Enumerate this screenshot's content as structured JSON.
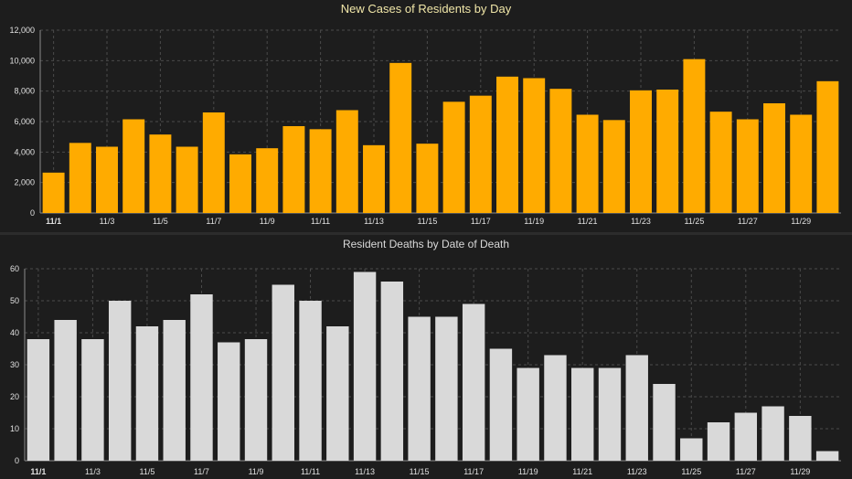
{
  "charts": [
    {
      "id": "cases",
      "chart_data": {
        "type": "bar",
        "title": "New Cases of Residents by Day",
        "xlabel": "",
        "ylabel": "",
        "ylim": [
          0,
          12000
        ],
        "yticks": [
          0,
          2000,
          4000,
          6000,
          8000,
          10000,
          12000
        ],
        "ytick_labels": [
          "0",
          "2,000",
          "4,000",
          "6,000",
          "8,000",
          "10,000",
          "12,000"
        ],
        "categories": [
          "11/1",
          "11/2",
          "11/3",
          "11/4",
          "11/5",
          "11/6",
          "11/7",
          "11/8",
          "11/9",
          "11/10",
          "11/11",
          "11/12",
          "11/13",
          "11/14",
          "11/15",
          "11/16",
          "11/17",
          "11/18",
          "11/19",
          "11/20",
          "11/21",
          "11/22",
          "11/23",
          "11/24",
          "11/25",
          "11/26",
          "11/27",
          "11/28",
          "11/29",
          "11/30"
        ],
        "xtick_labels": [
          "11/1",
          "11/3",
          "11/5",
          "11/7",
          "11/9",
          "11/11",
          "11/13",
          "11/15",
          "11/17",
          "11/19",
          "11/21",
          "11/23",
          "11/25",
          "11/27",
          "11/29"
        ],
        "values": [
          2650,
          4600,
          4350,
          6150,
          5150,
          4350,
          6600,
          3850,
          4250,
          5700,
          5500,
          6750,
          4450,
          9850,
          4550,
          7300,
          7700,
          8950,
          8850,
          8150,
          6450,
          6100,
          8050,
          8100,
          10100,
          6650,
          6150,
          7200,
          6450,
          8650
        ],
        "bar_color": "#ffab00",
        "grid": true
      }
    },
    {
      "id": "deaths",
      "chart_data": {
        "type": "bar",
        "title": "Resident Deaths by Date of Death",
        "xlabel": "",
        "ylabel": "",
        "ylim": [
          0,
          60
        ],
        "yticks": [
          0,
          10,
          20,
          30,
          40,
          50,
          60
        ],
        "ytick_labels": [
          "0",
          "10",
          "20",
          "30",
          "40",
          "50",
          "60"
        ],
        "categories": [
          "11/1",
          "11/2",
          "11/3",
          "11/4",
          "11/5",
          "11/6",
          "11/7",
          "11/8",
          "11/9",
          "11/10",
          "11/11",
          "11/12",
          "11/13",
          "11/14",
          "11/15",
          "11/16",
          "11/17",
          "11/18",
          "11/19",
          "11/20",
          "11/21",
          "11/22",
          "11/23",
          "11/24",
          "11/25",
          "11/26",
          "11/27",
          "11/28",
          "11/29",
          "11/30"
        ],
        "xtick_labels": [
          "11/1",
          "11/3",
          "11/5",
          "11/7",
          "11/9",
          "11/11",
          "11/13",
          "11/15",
          "11/17",
          "11/19",
          "11/21",
          "11/23",
          "11/25",
          "11/27",
          "11/29"
        ],
        "values": [
          38,
          44,
          38,
          50,
          42,
          44,
          52,
          37,
          38,
          55,
          50,
          42,
          59,
          56,
          45,
          45,
          49,
          35,
          29,
          33,
          29,
          29,
          33,
          24,
          7,
          12,
          15,
          17,
          14,
          3
        ],
        "bar_color": "#d9d9d9",
        "grid": true
      }
    }
  ],
  "colors": {
    "background": "#1d1d1d",
    "grid": "#4a4a4a",
    "axis": "#8a8a8a",
    "cases_title": "#f0e6a8",
    "deaths_title": "#d9d9d9"
  }
}
